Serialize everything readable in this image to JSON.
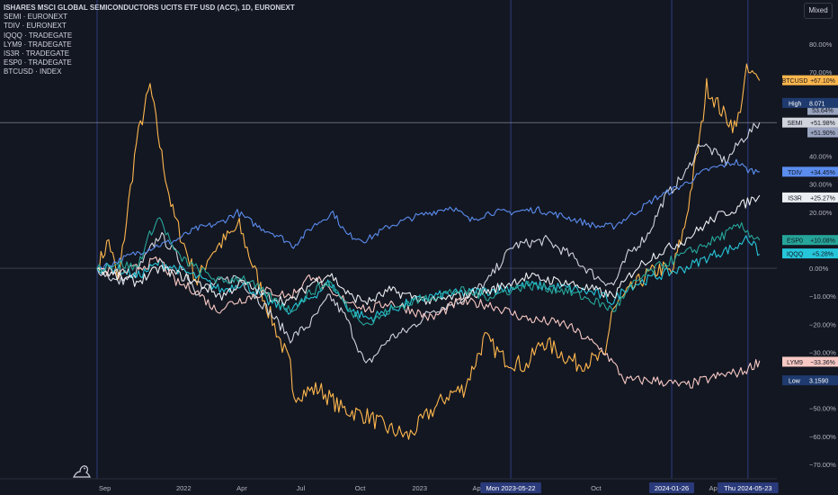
{
  "legend": {
    "title": "ISHARES MSCI GLOBAL SEMICONDUCTORS UCITS ETF USD (ACC), 1D, EURONEXT",
    "items": [
      "SEMI · EURONEXT",
      "TDIV · EURONEXT",
      "IQQQ · TRADEGATE",
      "LYM9 · TRADEGATE",
      "IS3R · TRADEGATE",
      "ESP0 · TRADEGATE",
      "BTCUSD · INDEX"
    ]
  },
  "scale_mode": "Mixed",
  "colors": {
    "background": "#131722",
    "SEMI": "#d1d4dc",
    "TDIV": "#5b8def",
    "IQQQ": "#26c6da",
    "LYM9": "#f8c9c4",
    "IS3R": "#eceff1",
    "ESP0": "#26a69a",
    "BTCUSD": "#ffb74d",
    "high_badge": "#1e3a6e",
    "low_badge": "#1e3a6e",
    "crosshair": "#3f51b5"
  },
  "chart_data": {
    "type": "line",
    "title": "ISHARES MSCI GLOBAL SEMICONDUCTORS UCITS ETF USD (ACC), 1D, EURONEXT",
    "x_range": [
      "2021-08-20",
      "2024-06-20"
    ],
    "x_ticks": [
      {
        "date": "2021-09-01",
        "label": "Sep"
      },
      {
        "date": "2022-01-01",
        "label": "2022"
      },
      {
        "date": "2022-04-01",
        "label": "Apr"
      },
      {
        "date": "2022-07-01",
        "label": "Jul"
      },
      {
        "date": "2022-10-01",
        "label": "Oct"
      },
      {
        "date": "2023-01-01",
        "label": "2023"
      },
      {
        "date": "2023-04-01",
        "label": "Apr"
      },
      {
        "date": "2023-07-01",
        "label": "Jul"
      },
      {
        "date": "2023-10-01",
        "label": "Oct"
      },
      {
        "date": "2024-04-01",
        "label": "Apr"
      }
    ],
    "x_highlight_labels": [
      {
        "date": "2023-05-22",
        "label": "Mon 2023-05-22"
      },
      {
        "date": "2024-01-26",
        "label": "2024-01-26"
      },
      {
        "date": "2024-05-23",
        "label": "Thu 2024-05-23"
      }
    ],
    "y_unit": "%",
    "ylim": [
      -73,
      86
    ],
    "y_ticks": [
      80,
      70,
      60,
      50,
      40,
      30,
      20,
      10,
      0,
      -10,
      -20,
      -30,
      -40,
      -50,
      -60,
      -70
    ],
    "y_tick_labels": [
      "80.00%",
      "70.00%",
      "60.00%",
      "50.00%",
      "40.00%",
      "30.00%",
      "20.00%",
      "10.00%",
      "0.00%",
      "−10.00%",
      "−20.00%",
      "−30.00%",
      "−40.00%",
      "−50.00%",
      "−60.00%",
      "−70.00%"
    ],
    "zero_line": true,
    "vertical_markers": [
      "2021-08-20",
      "2023-05-22",
      "2024-01-26",
      "2024-05-23"
    ],
    "series": [
      {
        "name": "BTCUSD",
        "badge": "+67.10%",
        "last": 67.1,
        "points": [
          [
            "2021-08-20",
            0
          ],
          [
            "2021-09-07",
            10
          ],
          [
            "2021-09-22",
            -5
          ],
          [
            "2021-10-20",
            45
          ],
          [
            "2021-11-10",
            65
          ],
          [
            "2021-11-28",
            40
          ],
          [
            "2021-12-15",
            20
          ],
          [
            "2022-01-22",
            -5
          ],
          [
            "2022-02-10",
            5
          ],
          [
            "2022-03-28",
            15
          ],
          [
            "2022-05-12",
            -15
          ],
          [
            "2022-06-15",
            -35
          ],
          [
            "2022-06-18",
            -45
          ],
          [
            "2022-07-30",
            -43
          ],
          [
            "2022-09-01",
            -50
          ],
          [
            "2022-10-15",
            -53
          ],
          [
            "2022-11-10",
            -57
          ],
          [
            "2022-12-15",
            -60
          ],
          [
            "2023-01-15",
            -52
          ],
          [
            "2023-02-15",
            -45
          ],
          [
            "2023-03-10",
            -43
          ],
          [
            "2023-03-20",
            -38
          ],
          [
            "2023-04-12",
            -25
          ],
          [
            "2023-05-10",
            -32
          ],
          [
            "2023-06-15",
            -35
          ],
          [
            "2023-07-10",
            -26
          ],
          [
            "2023-09-01",
            -34
          ],
          [
            "2023-10-15",
            -32
          ],
          [
            "2023-10-25",
            -15
          ],
          [
            "2023-11-15",
            -10
          ],
          [
            "2023-12-15",
            -3
          ],
          [
            "2024-01-10",
            0
          ],
          [
            "2024-01-26",
            -2
          ],
          [
            "2024-02-15",
            15
          ],
          [
            "2024-03-12",
            50
          ],
          [
            "2024-03-20",
            65
          ],
          [
            "2024-04-15",
            55
          ],
          [
            "2024-05-05",
            50
          ],
          [
            "2024-05-21",
            70
          ],
          [
            "2024-06-10",
            67
          ]
        ]
      },
      {
        "name": "SEMI",
        "badge": "+51.98%",
        "last": 52,
        "points": [
          [
            "2021-08-20",
            0
          ],
          [
            "2021-09-20",
            -5
          ],
          [
            "2021-10-15",
            -3
          ],
          [
            "2021-11-25",
            12
          ],
          [
            "2021-12-20",
            5
          ],
          [
            "2022-01-20",
            -8
          ],
          [
            "2022-02-25",
            -5
          ],
          [
            "2022-03-25",
            -3
          ],
          [
            "2022-05-12",
            -15
          ],
          [
            "2022-06-15",
            -25
          ],
          [
            "2022-07-15",
            -20
          ],
          [
            "2022-08-15",
            -10
          ],
          [
            "2022-09-10",
            -18
          ],
          [
            "2022-10-10",
            -35
          ],
          [
            "2022-11-15",
            -25
          ],
          [
            "2022-12-15",
            -22
          ],
          [
            "2023-01-20",
            -15
          ],
          [
            "2023-03-01",
            -12
          ],
          [
            "2023-04-15",
            -5
          ],
          [
            "2023-05-25",
            8
          ],
          [
            "2023-07-15",
            10
          ],
          [
            "2023-08-20",
            5
          ],
          [
            "2023-10-01",
            -3
          ],
          [
            "2023-10-28",
            -6
          ],
          [
            "2023-11-20",
            5
          ],
          [
            "2023-12-20",
            12
          ],
          [
            "2024-01-15",
            25
          ],
          [
            "2024-02-20",
            35
          ],
          [
            "2024-03-10",
            45
          ],
          [
            "2024-04-19",
            38
          ],
          [
            "2024-05-10",
            45
          ],
          [
            "2024-06-10",
            52
          ]
        ]
      },
      {
        "name": "TDIV",
        "badge": "+34.45%",
        "last": 34.45,
        "points": [
          [
            "2021-08-20",
            0
          ],
          [
            "2021-09-15",
            2
          ],
          [
            "2021-10-15",
            5
          ],
          [
            "2021-11-20",
            8
          ],
          [
            "2021-12-20",
            10
          ],
          [
            "2022-01-20",
            14
          ],
          [
            "2022-02-25",
            16
          ],
          [
            "2022-03-25",
            20
          ],
          [
            "2022-04-25",
            15
          ],
          [
            "2022-05-25",
            12
          ],
          [
            "2022-06-20",
            8
          ],
          [
            "2022-07-20",
            15
          ],
          [
            "2022-08-20",
            20
          ],
          [
            "2022-09-10",
            12
          ],
          [
            "2022-10-10",
            10
          ],
          [
            "2022-11-15",
            15
          ],
          [
            "2022-12-20",
            18
          ],
          [
            "2023-01-20",
            20
          ],
          [
            "2023-02-20",
            22
          ],
          [
            "2023-03-20",
            17
          ],
          [
            "2023-04-20",
            20
          ],
          [
            "2023-05-20",
            20
          ],
          [
            "2023-07-01",
            21
          ],
          [
            "2023-08-20",
            18
          ],
          [
            "2023-10-01",
            15
          ],
          [
            "2023-10-28",
            15
          ],
          [
            "2023-12-01",
            20
          ],
          [
            "2024-01-01",
            25
          ],
          [
            "2024-02-15",
            30
          ],
          [
            "2024-03-20",
            35
          ],
          [
            "2024-05-05",
            38
          ],
          [
            "2024-05-23",
            35
          ],
          [
            "2024-06-10",
            34.5
          ]
        ]
      },
      {
        "name": "IQQQ",
        "badge": "+5.28%",
        "last": 5.28,
        "points": [
          [
            "2021-08-20",
            0
          ],
          [
            "2021-09-20",
            0
          ],
          [
            "2021-10-20",
            -3
          ],
          [
            "2021-11-25",
            2
          ],
          [
            "2021-12-20",
            0
          ],
          [
            "2022-01-20",
            -3
          ],
          [
            "2022-03-01",
            -8
          ],
          [
            "2022-04-01",
            -5
          ],
          [
            "2022-05-12",
            -12
          ],
          [
            "2022-06-15",
            -15
          ],
          [
            "2022-07-20",
            -10
          ],
          [
            "2022-08-15",
            -5
          ],
          [
            "2022-09-15",
            -15
          ],
          [
            "2022-10-15",
            -18
          ],
          [
            "2022-11-15",
            -15
          ],
          [
            "2022-12-20",
            -12
          ],
          [
            "2023-01-20",
            -10
          ],
          [
            "2023-03-01",
            -9
          ],
          [
            "2023-04-20",
            -8
          ],
          [
            "2023-06-15",
            -6
          ],
          [
            "2023-08-15",
            -7
          ],
          [
            "2023-10-01",
            -9
          ],
          [
            "2023-10-28",
            -12
          ],
          [
            "2023-11-15",
            -7
          ],
          [
            "2024-01-01",
            -3
          ],
          [
            "2024-02-15",
            0
          ],
          [
            "2024-04-01",
            5
          ],
          [
            "2024-05-10",
            8
          ],
          [
            "2024-05-20",
            12
          ],
          [
            "2024-06-10",
            5
          ]
        ]
      },
      {
        "name": "LYM9",
        "badge": "−33.36%",
        "last": -33.36,
        "points": [
          [
            "2021-08-20",
            0
          ],
          [
            "2021-09-20",
            -2
          ],
          [
            "2021-10-20",
            0
          ],
          [
            "2021-11-25",
            3
          ],
          [
            "2021-12-20",
            -5
          ],
          [
            "2022-01-20",
            -8
          ],
          [
            "2022-02-20",
            -15
          ],
          [
            "2022-03-20",
            -12
          ],
          [
            "2022-05-12",
            -8
          ],
          [
            "2022-06-15",
            -10
          ],
          [
            "2022-07-20",
            -2
          ],
          [
            "2022-08-20",
            -10
          ],
          [
            "2022-09-20",
            -12
          ],
          [
            "2022-10-15",
            -15
          ],
          [
            "2022-11-15",
            -12
          ],
          [
            "2022-12-20",
            -15
          ],
          [
            "2023-01-20",
            -18
          ],
          [
            "2023-03-01",
            -12
          ],
          [
            "2023-04-20",
            -13
          ],
          [
            "2023-06-15",
            -18
          ],
          [
            "2023-08-15",
            -20
          ],
          [
            "2023-09-15",
            -25
          ],
          [
            "2023-10-15",
            -30
          ],
          [
            "2023-11-15",
            -40
          ],
          [
            "2024-01-01",
            -40
          ],
          [
            "2024-02-15",
            -42
          ],
          [
            "2024-04-15",
            -38
          ],
          [
            "2024-05-15",
            -37
          ],
          [
            "2024-06-10",
            -33
          ]
        ]
      },
      {
        "name": "IS3R",
        "badge": "+25.27%",
        "last": 25.27,
        "points": [
          [
            "2021-08-20",
            0
          ],
          [
            "2021-09-20",
            -3
          ],
          [
            "2021-10-20",
            -5
          ],
          [
            "2021-11-25",
            0
          ],
          [
            "2021-12-20",
            -2
          ],
          [
            "2022-01-20",
            -5
          ],
          [
            "2022-03-01",
            -10
          ],
          [
            "2022-04-01",
            -5
          ],
          [
            "2022-05-12",
            -10
          ],
          [
            "2022-06-15",
            -12
          ],
          [
            "2022-07-20",
            -5
          ],
          [
            "2022-08-15",
            -2
          ],
          [
            "2022-09-15",
            -10
          ],
          [
            "2022-10-15",
            -12
          ],
          [
            "2022-11-15",
            -8
          ],
          [
            "2022-12-20",
            -10
          ],
          [
            "2023-01-20",
            -12
          ],
          [
            "2023-03-01",
            -10
          ],
          [
            "2023-04-20",
            -8
          ],
          [
            "2023-06-15",
            -3
          ],
          [
            "2023-08-15",
            -5
          ],
          [
            "2023-10-01",
            -8
          ],
          [
            "2023-10-28",
            -10
          ],
          [
            "2023-12-01",
            0
          ],
          [
            "2024-01-01",
            5
          ],
          [
            "2024-02-15",
            10
          ],
          [
            "2024-04-01",
            18
          ],
          [
            "2024-05-10",
            22
          ],
          [
            "2024-06-10",
            26
          ]
        ]
      },
      {
        "name": "ESP0",
        "badge": "+10.08%",
        "last": 10.08,
        "points": [
          [
            "2021-08-20",
            0
          ],
          [
            "2021-09-20",
            2
          ],
          [
            "2021-10-20",
            0
          ],
          [
            "2021-11-15",
            15
          ],
          [
            "2021-11-25",
            18
          ],
          [
            "2021-12-20",
            5
          ],
          [
            "2022-01-20",
            0
          ],
          [
            "2022-03-01",
            -5
          ],
          [
            "2022-04-01",
            -3
          ],
          [
            "2022-05-12",
            -10
          ],
          [
            "2022-06-15",
            -15
          ],
          [
            "2022-07-20",
            -8
          ],
          [
            "2022-08-15",
            -5
          ],
          [
            "2022-09-15",
            -15
          ],
          [
            "2022-10-15",
            -20
          ],
          [
            "2022-11-15",
            -15
          ],
          [
            "2022-12-20",
            -12
          ],
          [
            "2023-01-20",
            -10
          ],
          [
            "2023-03-01",
            -8
          ],
          [
            "2023-04-20",
            -10
          ],
          [
            "2023-06-15",
            -6
          ],
          [
            "2023-08-15",
            -8
          ],
          [
            "2023-10-01",
            -12
          ],
          [
            "2023-10-28",
            -15
          ],
          [
            "2023-12-01",
            -5
          ],
          [
            "2024-01-01",
            0
          ],
          [
            "2024-02-15",
            5
          ],
          [
            "2024-04-01",
            10
          ],
          [
            "2024-05-10",
            15
          ],
          [
            "2024-06-10",
            10
          ]
        ]
      }
    ],
    "extreme_badges": [
      {
        "label": "High",
        "value": "8.071",
        "level": 59
      },
      {
        "label": "Low",
        "value": "3.1590",
        "level": -40
      }
    ],
    "crosshair_level": 51.98,
    "extra_badges": [
      {
        "value": "53.64%",
        "level": 56.5
      },
      {
        "value": "+51.90%",
        "level": 48.5
      }
    ]
  }
}
